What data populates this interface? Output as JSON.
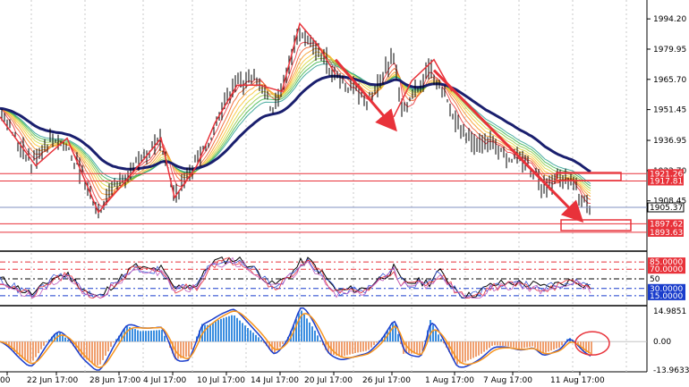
{
  "main_panel": {
    "price_axis_labels": [
      "1994.20",
      "1979.95",
      "1965.70",
      "1951.45",
      "1936.95",
      "1922.70",
      "1908.45"
    ],
    "highlighted_levels": [
      {
        "value": "1921.26",
        "color": "#e8323a"
      },
      {
        "value": "1917.81",
        "color": "#e8323a"
      },
      {
        "value": "1905.37",
        "color": "#000000",
        "bg": "#ffffff"
      },
      {
        "value": "1897.62",
        "color": "#e8323a"
      },
      {
        "value": "1893.63",
        "color": "#e8323a"
      }
    ],
    "price_range": [
      1886,
      2001
    ]
  },
  "rsi_panel": {
    "labels": [
      {
        "value": "85.0000",
        "color": "#e8323a"
      },
      {
        "value": "70.0000",
        "color": "#e8323a"
      },
      {
        "value": "50",
        "color": "#000000"
      },
      {
        "value": "30.0000",
        "color": "#1a3dcc"
      },
      {
        "value": "15.0000",
        "color": "#1a3dcc"
      }
    ]
  },
  "macd_panel": {
    "labels": [
      "14.9851",
      "0.00",
      "-13.9633"
    ]
  },
  "time_axis": {
    "labels": [
      "00",
      "22 Jun 17:00",
      "28 Jun 17:00",
      "4 Jul 17:00",
      "10 Jul 17:00",
      "14 Jul 17:00",
      "20 Jul 17:00",
      "26 Jul 17:00",
      "1 Aug 17:00",
      "7 Aug 17:00",
      "11 Aug 17:00"
    ]
  },
  "colors": {
    "red_annotation": "#e8323a",
    "ma_slow": "#1a1f6e",
    "grid": "#c8c8c8",
    "macd_up": "#3a8de0",
    "macd_down": "#f0a070"
  }
}
